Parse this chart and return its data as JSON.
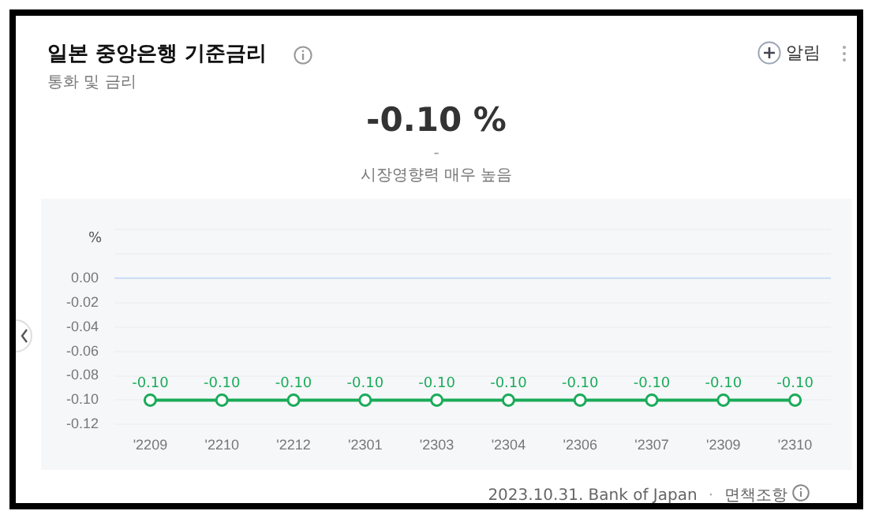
{
  "chart_data": {
    "type": "line",
    "title": "일본 중앙은행 기준금리",
    "subtitle": "통화 및 금리",
    "ylabel": "%",
    "annotations": [
      "-0.10 %",
      "-",
      "시장영향력 매우 높음",
      "알림",
      "2023.10.31. Bank of Japan",
      "·",
      "면책조항"
    ],
    "categories": [
      "'2209",
      "'2210",
      "'2212",
      "'2301",
      "'2303",
      "'2304",
      "'2306",
      "'2307",
      "'2309",
      "'2310"
    ],
    "series": [
      {
        "color": "#1aab5a",
        "values": [
          -0.1,
          -0.1,
          -0.1,
          -0.1,
          -0.1,
          -0.1,
          -0.1,
          -0.1,
          -0.1,
          -0.1
        ],
        "value_labels": [
          "-0.10",
          "-0.10",
          "-0.10",
          "-0.10",
          "-0.10",
          "-0.10",
          "-0.10",
          "-0.10",
          "-0.10",
          "-0.10"
        ]
      }
    ],
    "ylim": [
      -0.12,
      0.04
    ],
    "yticks": [
      {
        "value": -0.12,
        "label": "-0.12"
      },
      {
        "value": -0.1,
        "label": "-0.10"
      },
      {
        "value": -0.08,
        "label": "-0.08"
      },
      {
        "value": -0.06,
        "label": "-0.06"
      },
      {
        "value": -0.04,
        "label": "-0.04"
      },
      {
        "value": -0.02,
        "label": "-0.02"
      },
      {
        "value": 0,
        "label": "0.00"
      },
      {
        "value": 0.02,
        "label": null
      },
      {
        "value": 0.04,
        "label": null
      }
    ],
    "ref_lines": [
      {
        "axis": "y",
        "value": 0,
        "color": "#c9dbf5"
      }
    ],
    "grid": "y",
    "marker": "circle",
    "line_style": "solid",
    "legend": false
  }
}
